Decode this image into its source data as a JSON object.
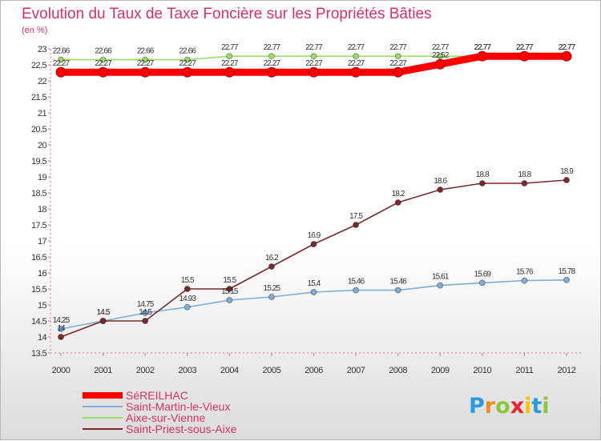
{
  "chart_data": {
    "type": "line",
    "title": "Evolution du Taux de Taxe Foncière sur les Propriétés Bâties",
    "ylabel": "(en %)",
    "xlabel": "",
    "ylim": [
      13.5,
      23
    ],
    "yticks": [
      "13.5",
      "14",
      "14.5",
      "15",
      "15.5",
      "16",
      "16.5",
      "17",
      "17.5",
      "18",
      "18.5",
      "19",
      "19.5",
      "20",
      "20.5",
      "21",
      "21.5",
      "22",
      "22.5",
      "23"
    ],
    "x": [
      "2000",
      "2001",
      "2002",
      "2003",
      "2004",
      "2005",
      "2006",
      "2007",
      "2008",
      "2009",
      "2010",
      "2011",
      "2012"
    ],
    "grid": false,
    "legend": "bottom-left",
    "series": [
      {
        "name": "Aixe-sur-Vienne",
        "color": "#99dd66",
        "values": [
          22.66,
          22.66,
          22.66,
          22.66,
          22.77,
          22.77,
          22.77,
          22.77,
          22.77,
          22.77,
          22.77,
          22.77,
          22.77
        ],
        "labels": [
          "22.66",
          "22.66",
          "22.66",
          "22.66",
          "22.77",
          "22.77",
          "22.77",
          "22.77",
          "22.77",
          "22.77",
          "22.77",
          "22.77",
          "22.77"
        ]
      },
      {
        "name": "SéREILHAC",
        "color": "#ff0000",
        "values": [
          22.27,
          22.27,
          22.27,
          22.27,
          22.27,
          22.27,
          22.27,
          22.27,
          22.27,
          22.52,
          22.77,
          22.77,
          22.77
        ],
        "labels": [
          "22.27",
          "22.27",
          "22.27",
          "22.27",
          "22.27",
          "22.27",
          "22.27",
          "22.27",
          "22.27",
          "22.52",
          "22.77",
          "22.77",
          "22.77"
        ]
      },
      {
        "name": "Saint-Martin-le-Vieux",
        "color": "#7fadd8",
        "values": [
          14.25,
          14.5,
          14.75,
          14.93,
          15.15,
          15.25,
          15.4,
          15.46,
          15.46,
          15.61,
          15.69,
          15.76,
          15.78
        ],
        "labels": [
          "14.25",
          "14.5",
          "14.75",
          "14.93",
          "15.15",
          "15.25",
          "15.4",
          "15.46",
          "15.46",
          "15.61",
          "15.69",
          "15.76",
          "15.78"
        ]
      },
      {
        "name": "Saint-Priest-sous-Aixe",
        "color": "#7a2a2a",
        "values": [
          14,
          14.5,
          14.5,
          15.5,
          15.5,
          16.2,
          16.9,
          17.5,
          18.2,
          18.6,
          18.8,
          18.8,
          18.9
        ],
        "labels": [
          "14",
          "14.5",
          "14.5",
          "15.5",
          "15.5",
          "16.2",
          "16.9",
          "17.5",
          "18.2",
          "18.6",
          "18.8",
          "18.8",
          "18.9"
        ]
      }
    ],
    "legend_entries": [
      {
        "name": "SéREILHAC",
        "color": "#ff0000",
        "text_color": "#d6306a"
      },
      {
        "name": "Saint-Martin-le-Vieux",
        "color": "#7fadd8",
        "text_color": "#d6306a"
      },
      {
        "name": "Aixe-sur-Vienne",
        "color": "#99dd66",
        "text_color": "#d6306a"
      },
      {
        "name": "Saint-Priest-sous-Aixe",
        "color": "#7a2a2a",
        "text_color": "#d6306a"
      }
    ]
  },
  "logo": {
    "letters": [
      "P",
      "r",
      "o",
      "x",
      "i",
      "t",
      "i"
    ],
    "colors": [
      "#2b9be0",
      "#f08a1e",
      "#8cc63f",
      "#e8262d",
      "#f6c500",
      "#2b9be0",
      "#8cc63f"
    ]
  }
}
